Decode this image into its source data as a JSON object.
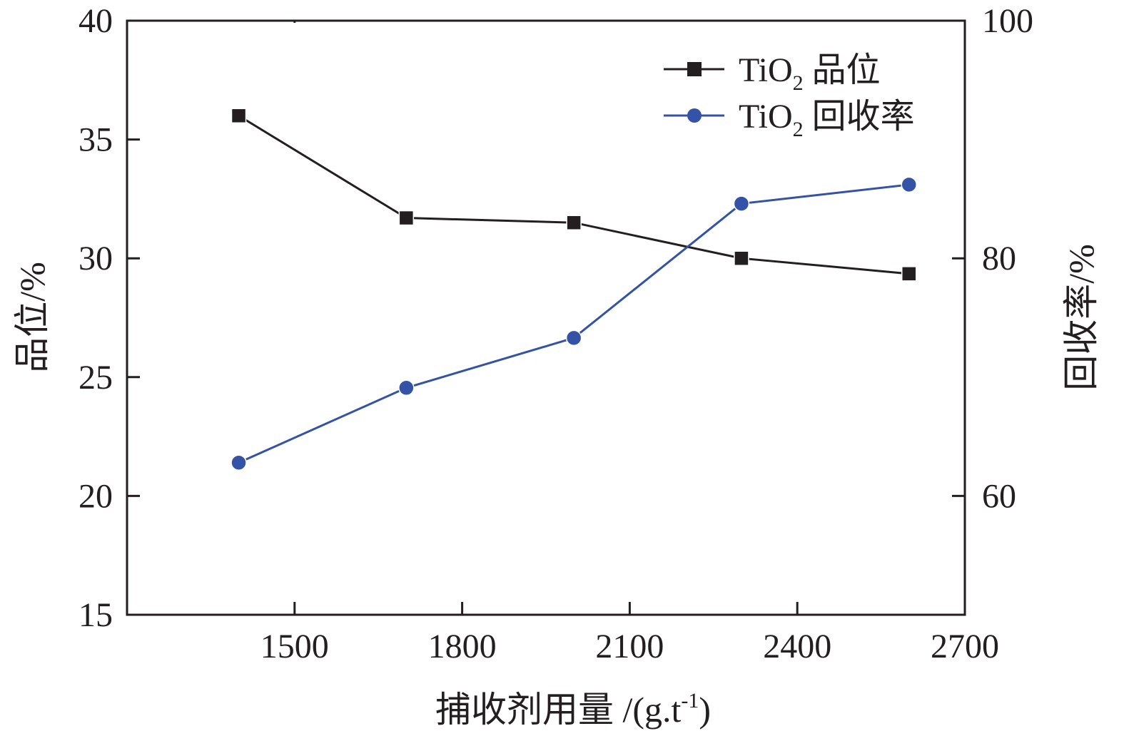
{
  "chart_data": {
    "type": "line",
    "title": "",
    "xlabel": "捕收剂用量 /(g.t⁻¹)",
    "xlabel_parts": {
      "main": "捕收剂用量 /(g.t",
      "sup": "-1",
      "end": ")"
    },
    "ylabel_left": "品位/%",
    "ylabel_right": "回收率/%",
    "xlim": [
      1200,
      2700
    ],
    "ylim_left": [
      15,
      40
    ],
    "ylim_right": [
      50,
      100
    ],
    "x_ticks": [
      "1500",
      "1800",
      "2100",
      "2400",
      "2700"
    ],
    "x_tick_values": [
      1500,
      1800,
      2100,
      2400,
      2700
    ],
    "y_left_ticks": [
      "15",
      "20",
      "25",
      "30",
      "35",
      "40"
    ],
    "y_left_tick_values": [
      15,
      20,
      25,
      30,
      35,
      40
    ],
    "y_right_ticks": [
      "60",
      "80",
      "100"
    ],
    "y_right_tick_values": [
      60,
      80,
      100
    ],
    "grid": false,
    "legend_position": "top-right",
    "x": [
      1400,
      1700,
      2000,
      2300,
      2600
    ],
    "series": [
      {
        "name": "TiO2 品位",
        "legend_main": "TiO",
        "legend_sub": "2",
        "legend_rest": " 品位",
        "axis": "left",
        "marker": "square",
        "color": "#231f20",
        "values": [
          36.0,
          31.7,
          31.5,
          30.0,
          29.35
        ]
      },
      {
        "name": "TiO2 回收率",
        "legend_main": "TiO",
        "legend_sub": "2",
        "legend_rest": " 回收率",
        "axis": "right",
        "marker": "circle",
        "color": "#3452a6",
        "values": [
          62.8,
          69.1,
          73.3,
          84.6,
          86.2
        ]
      }
    ]
  }
}
